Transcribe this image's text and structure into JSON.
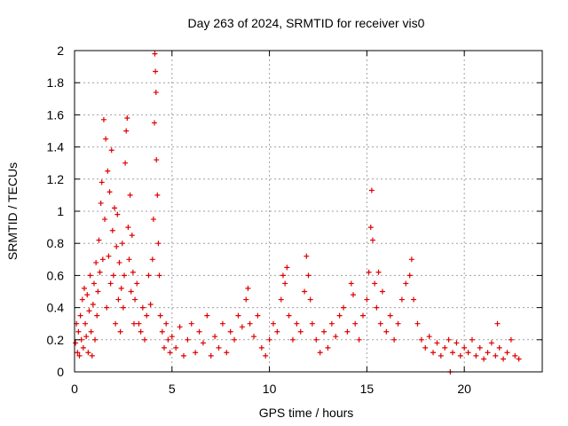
{
  "chart_data": {
    "type": "scatter",
    "title": "Day 263 of 2024, SRMTID for receiver vis0",
    "xlabel": "GPS time / hours",
    "ylabel": "SRMTID / TECUs",
    "xlim": [
      0,
      24
    ],
    "ylim": [
      0,
      2
    ],
    "xticks": [
      0,
      5,
      10,
      15,
      20
    ],
    "yticks": [
      0,
      0.2,
      0.4,
      0.6,
      0.8,
      1,
      1.2,
      1.4,
      1.6,
      1.8,
      2
    ],
    "grid": true,
    "marker": "+",
    "series_color": "#e00000",
    "series": [
      {
        "name": "SRMTID",
        "points": [
          [
            0.05,
            0.18
          ],
          [
            0.1,
            0.3
          ],
          [
            0.15,
            0.12
          ],
          [
            0.2,
            0.25
          ],
          [
            0.25,
            0.1
          ],
          [
            0.3,
            0.35
          ],
          [
            0.35,
            0.2
          ],
          [
            0.4,
            0.45
          ],
          [
            0.45,
            0.15
          ],
          [
            0.5,
            0.52
          ],
          [
            0.55,
            0.3
          ],
          [
            0.6,
            0.22
          ],
          [
            0.65,
            0.48
          ],
          [
            0.7,
            0.12
          ],
          [
            0.75,
            0.38
          ],
          [
            0.8,
            0.6
          ],
          [
            0.85,
            0.25
          ],
          [
            0.9,
            0.1
          ],
          [
            0.95,
            0.42
          ],
          [
            1.0,
            0.55
          ],
          [
            1.05,
            0.2
          ],
          [
            1.1,
            0.68
          ],
          [
            1.15,
            0.35
          ],
          [
            1.2,
            0.5
          ],
          [
            1.25,
            0.82
          ],
          [
            1.3,
            0.62
          ],
          [
            1.35,
            1.05
          ],
          [
            1.4,
            1.18
          ],
          [
            1.45,
            0.7
          ],
          [
            1.5,
            1.57
          ],
          [
            1.55,
            0.95
          ],
          [
            1.6,
            1.45
          ],
          [
            1.65,
            0.4
          ],
          [
            1.7,
            1.25
          ],
          [
            1.75,
            0.72
          ],
          [
            1.8,
            1.12
          ],
          [
            1.85,
            0.55
          ],
          [
            1.9,
            1.38
          ],
          [
            1.95,
            0.88
          ],
          [
            2.0,
            0.6
          ],
          [
            2.05,
            1.02
          ],
          [
            2.1,
            0.3
          ],
          [
            2.15,
            0.78
          ],
          [
            2.2,
            0.98
          ],
          [
            2.25,
            0.45
          ],
          [
            2.3,
            0.68
          ],
          [
            2.35,
            0.25
          ],
          [
            2.4,
            0.52
          ],
          [
            2.45,
            0.8
          ],
          [
            2.5,
            0.4
          ],
          [
            2.55,
            0.6
          ],
          [
            2.6,
            1.3
          ],
          [
            2.65,
            1.5
          ],
          [
            2.7,
            1.58
          ],
          [
            2.75,
            0.9
          ],
          [
            2.8,
            0.7
          ],
          [
            2.85,
            1.1
          ],
          [
            2.9,
            0.5
          ],
          [
            2.95,
            0.85
          ],
          [
            3.0,
            0.62
          ],
          [
            3.05,
            0.3
          ],
          [
            3.1,
            0.45
          ],
          [
            3.2,
            0.55
          ],
          [
            3.3,
            0.3
          ],
          [
            3.4,
            0.25
          ],
          [
            3.5,
            0.4
          ],
          [
            3.6,
            0.2
          ],
          [
            3.7,
            0.35
          ],
          [
            3.8,
            0.6
          ],
          [
            3.9,
            0.42
          ],
          [
            4.0,
            0.7
          ],
          [
            4.05,
            0.95
          ],
          [
            4.1,
            1.55
          ],
          [
            4.12,
            1.98
          ],
          [
            4.15,
            1.87
          ],
          [
            4.18,
            1.74
          ],
          [
            4.2,
            1.32
          ],
          [
            4.25,
            1.1
          ],
          [
            4.3,
            0.8
          ],
          [
            4.35,
            0.6
          ],
          [
            4.4,
            0.35
          ],
          [
            4.5,
            0.25
          ],
          [
            4.6,
            0.15
          ],
          [
            4.7,
            0.3
          ],
          [
            4.8,
            0.2
          ],
          [
            4.9,
            0.12
          ],
          [
            5.0,
            0.22
          ],
          [
            5.2,
            0.15
          ],
          [
            5.4,
            0.28
          ],
          [
            5.6,
            0.1
          ],
          [
            5.8,
            0.2
          ],
          [
            6.0,
            0.3
          ],
          [
            6.2,
            0.12
          ],
          [
            6.4,
            0.25
          ],
          [
            6.6,
            0.18
          ],
          [
            6.8,
            0.35
          ],
          [
            7.0,
            0.1
          ],
          [
            7.2,
            0.22
          ],
          [
            7.4,
            0.15
          ],
          [
            7.6,
            0.3
          ],
          [
            7.8,
            0.12
          ],
          [
            8.0,
            0.25
          ],
          [
            8.2,
            0.2
          ],
          [
            8.4,
            0.35
          ],
          [
            8.6,
            0.28
          ],
          [
            8.8,
            0.45
          ],
          [
            8.9,
            0.52
          ],
          [
            9.0,
            0.3
          ],
          [
            9.2,
            0.22
          ],
          [
            9.4,
            0.35
          ],
          [
            9.6,
            0.15
          ],
          [
            9.8,
            0.1
          ],
          [
            10.0,
            0.2
          ],
          [
            10.2,
            0.3
          ],
          [
            10.4,
            0.25
          ],
          [
            10.6,
            0.45
          ],
          [
            10.7,
            0.6
          ],
          [
            10.8,
            0.55
          ],
          [
            10.9,
            0.65
          ],
          [
            11.0,
            0.35
          ],
          [
            11.2,
            0.2
          ],
          [
            11.4,
            0.3
          ],
          [
            11.6,
            0.25
          ],
          [
            11.8,
            0.5
          ],
          [
            11.9,
            0.72
          ],
          [
            12.0,
            0.6
          ],
          [
            12.1,
            0.45
          ],
          [
            12.2,
            0.3
          ],
          [
            12.4,
            0.2
          ],
          [
            12.6,
            0.12
          ],
          [
            12.8,
            0.25
          ],
          [
            13.0,
            0.15
          ],
          [
            13.2,
            0.3
          ],
          [
            13.4,
            0.22
          ],
          [
            13.6,
            0.35
          ],
          [
            13.8,
            0.4
          ],
          [
            14.0,
            0.25
          ],
          [
            14.2,
            0.55
          ],
          [
            14.3,
            0.48
          ],
          [
            14.4,
            0.3
          ],
          [
            14.6,
            0.2
          ],
          [
            14.8,
            0.35
          ],
          [
            15.0,
            0.45
          ],
          [
            15.1,
            0.62
          ],
          [
            15.2,
            0.9
          ],
          [
            15.25,
            1.13
          ],
          [
            15.3,
            0.82
          ],
          [
            15.4,
            0.55
          ],
          [
            15.5,
            0.4
          ],
          [
            15.6,
            0.62
          ],
          [
            15.7,
            0.3
          ],
          [
            15.8,
            0.5
          ],
          [
            16.0,
            0.25
          ],
          [
            16.2,
            0.35
          ],
          [
            16.4,
            0.2
          ],
          [
            16.6,
            0.3
          ],
          [
            16.8,
            0.45
          ],
          [
            17.0,
            0.55
          ],
          [
            17.2,
            0.6
          ],
          [
            17.3,
            0.7
          ],
          [
            17.4,
            0.45
          ],
          [
            17.6,
            0.3
          ],
          [
            17.8,
            0.2
          ],
          [
            18.0,
            0.15
          ],
          [
            18.2,
            0.22
          ],
          [
            18.4,
            0.12
          ],
          [
            18.6,
            0.18
          ],
          [
            18.8,
            0.1
          ],
          [
            19.0,
            0.15
          ],
          [
            19.2,
            0.2
          ],
          [
            19.28,
            0.0
          ],
          [
            19.4,
            0.12
          ],
          [
            19.6,
            0.18
          ],
          [
            19.8,
            0.1
          ],
          [
            20.0,
            0.15
          ],
          [
            20.2,
            0.12
          ],
          [
            20.4,
            0.2
          ],
          [
            20.6,
            0.1
          ],
          [
            20.8,
            0.15
          ],
          [
            21.0,
            0.08
          ],
          [
            21.2,
            0.12
          ],
          [
            21.4,
            0.18
          ],
          [
            21.6,
            0.1
          ],
          [
            21.7,
            0.3
          ],
          [
            21.8,
            0.15
          ],
          [
            22.0,
            0.08
          ],
          [
            22.2,
            0.12
          ],
          [
            22.4,
            0.2
          ],
          [
            22.6,
            0.1
          ],
          [
            22.8,
            0.08
          ]
        ]
      }
    ]
  }
}
